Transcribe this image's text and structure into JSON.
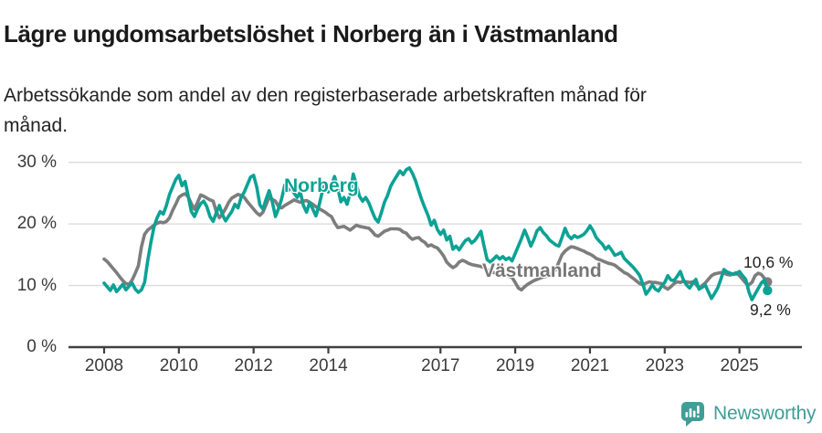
{
  "header": {
    "title": "Lägre ungdomsarbetslöshet i Norberg än i Västmanland",
    "subtitle_line1": "Arbetssökande som andel av den registerbaserade arbetskraften månad för",
    "subtitle_line2": "månad."
  },
  "footer": {
    "brand": "Newsworthy",
    "brand_color": "#3f9e97"
  },
  "colors": {
    "norberg_line": "#0ca295",
    "vastmanland_line": "#7d7d7d",
    "grid": "#dadada",
    "axis": "#404040",
    "tick_text": "#3a3a3a"
  },
  "chart_data": {
    "type": "line",
    "title": "Lägre ungdomsarbetslöshet i Norberg än i Västmanland",
    "x_unit": "month",
    "x_start": "2008-01",
    "x_end": "2025-10",
    "x_axis": {
      "tick_years": [
        2008,
        2010,
        2012,
        2014,
        2017,
        2019,
        2021,
        2023,
        2025
      ]
    },
    "y_axis": {
      "ticks": [
        {
          "label": "30 %",
          "value": 30
        },
        {
          "label": "20 %",
          "value": 20
        },
        {
          "label": "10 %",
          "value": 10
        },
        {
          "label": "0 %",
          "value": 0
        }
      ],
      "ylim": [
        0,
        30
      ],
      "grid": true
    },
    "legend_position": "inline-labels",
    "series": [
      {
        "name": "Norberg",
        "color": "#0ca295",
        "end_label": "9,2 %",
        "end_value": 9.2,
        "values": [
          10.4,
          9.8,
          9.2,
          10.1,
          9.0,
          9.6,
          10.2,
          9.3,
          9.9,
          10.4,
          9.4,
          8.9,
          9.3,
          10.5,
          14.0,
          17.0,
          19.5,
          21.0,
          22.0,
          21.6,
          23.0,
          24.8,
          26.0,
          27.2,
          27.9,
          26.2,
          26.9,
          24.5,
          22.0,
          21.2,
          22.4,
          23.3,
          23.7,
          22.8,
          21.2,
          20.4,
          21.8,
          23.0,
          21.5,
          20.5,
          21.3,
          22.0,
          23.2,
          22.6,
          24.3,
          25.2,
          26.4,
          27.6,
          27.9,
          26.0,
          23.1,
          22.4,
          24.0,
          25.4,
          23.6,
          21.2,
          22.5,
          24.1,
          26.3,
          25.4,
          25.9,
          25.0,
          24.3,
          25.2,
          23.0,
          21.9,
          23.5,
          22.4,
          21.3,
          23.0,
          25.1,
          26.7,
          25.2,
          26.3,
          27.7,
          25.8,
          23.6,
          24.3,
          23.2,
          25.0,
          28.1,
          26.4,
          24.5,
          23.7,
          24.3,
          23.4,
          22.1,
          20.9,
          20.3,
          21.8,
          23.5,
          24.6,
          26.1,
          27.0,
          27.8,
          28.6,
          28.0,
          28.8,
          29.1,
          28.2,
          27.0,
          25.4,
          23.9,
          22.6,
          21.4,
          19.8,
          20.6,
          19.1,
          18.3,
          19.0,
          17.4,
          18.0,
          15.9,
          16.4,
          15.8,
          16.6,
          17.3,
          17.6,
          16.9,
          17.3,
          18.0,
          18.8,
          16.4,
          14.2,
          13.8,
          14.3,
          14.8,
          14.3,
          14.7,
          14.2,
          14.5,
          14.0,
          15.2,
          16.4,
          17.6,
          19.0,
          17.8,
          16.4,
          17.5,
          18.9,
          19.4,
          18.6,
          18.1,
          17.4,
          17.0,
          16.6,
          16.4,
          17.8,
          19.3,
          18.1,
          17.6,
          18.1,
          17.8,
          18.0,
          18.3,
          18.9,
          19.7,
          18.9,
          17.8,
          17.2,
          16.7,
          15.9,
          16.4,
          15.7,
          14.9,
          15.1,
          15.4,
          14.4,
          13.9,
          13.4,
          12.9,
          12.3,
          11.6,
          10.2,
          8.6,
          9.3,
          10.1,
          9.4,
          9.1,
          9.9,
          10.5,
          11.6,
          10.9,
          10.8,
          11.5,
          12.3,
          10.9,
          10.1,
          9.6,
          10.4,
          11.0,
          9.4,
          9.7,
          10.1,
          9.0,
          7.9,
          8.7,
          9.6,
          11.0,
          12.6,
          12.2,
          12.0,
          11.8,
          11.9,
          12.3,
          11.6,
          11.0,
          9.0,
          7.7,
          8.6,
          9.5,
          10.4,
          10.9,
          9.2
        ]
      },
      {
        "name": "Västmanland",
        "color": "#7d7d7d",
        "end_label": "10,6 %",
        "end_value": 10.6,
        "values": [
          14.3,
          13.9,
          13.3,
          12.7,
          12.1,
          11.4,
          10.8,
          10.3,
          10.2,
          10.9,
          12.0,
          13.2,
          16.3,
          18.3,
          19.0,
          19.4,
          19.8,
          20.1,
          20.3,
          20.2,
          20.4,
          21.0,
          22.2,
          23.2,
          24.3,
          24.7,
          24.9,
          24.4,
          23.3,
          22.4,
          23.5,
          24.7,
          24.5,
          24.2,
          23.9,
          23.7,
          22.0,
          21.0,
          21.6,
          22.5,
          23.5,
          24.2,
          24.5,
          24.8,
          24.6,
          24.3,
          23.6,
          23.0,
          22.4,
          21.8,
          21.4,
          21.9,
          23.1,
          24.3,
          24.0,
          23.7,
          22.8,
          22.6,
          23.0,
          23.3,
          23.6,
          23.9,
          23.7,
          23.5,
          23.7,
          23.8,
          23.5,
          23.2,
          22.8,
          22.5,
          22.2,
          21.9,
          21.5,
          21.2,
          20.2,
          19.4,
          19.5,
          19.6,
          19.3,
          19.0,
          19.4,
          19.8,
          19.6,
          19.5,
          19.4,
          19.3,
          18.8,
          18.2,
          18.0,
          18.4,
          18.8,
          19.0,
          19.2,
          19.2,
          19.2,
          19.1,
          18.7,
          18.5,
          17.9,
          17.5,
          17.7,
          17.8,
          17.3,
          17.0,
          16.4,
          16.6,
          16.3,
          16.1,
          15.5,
          14.8,
          13.8,
          13.3,
          12.9,
          13.2,
          13.8,
          14.1,
          13.9,
          13.6,
          13.4,
          13.3,
          13.2,
          13.1,
          12.9,
          12.6,
          12.3,
          12.1,
          12.0,
          11.9,
          11.8,
          11.7,
          11.5,
          11.3,
          10.5,
          9.6,
          9.3,
          9.8,
          10.2,
          10.5,
          10.8,
          11.0,
          11.2,
          11.4,
          11.5,
          11.7,
          12.0,
          12.6,
          13.8,
          15.0,
          15.6,
          16.0,
          16.3,
          16.2,
          16.0,
          15.8,
          15.6,
          15.3,
          15.1,
          14.8,
          14.4,
          14.2,
          14.0,
          13.8,
          13.6,
          13.5,
          13.3,
          12.9,
          12.5,
          12.1,
          11.9,
          11.5,
          11.1,
          10.7,
          10.3,
          10.1,
          10.4,
          10.6,
          10.5,
          10.5,
          10.4,
          10.3,
          9.7,
          9.4,
          9.8,
          10.3,
          10.6,
          10.5,
          10.7,
          10.6,
          10.5,
          10.6,
          10.2,
          9.6,
          10.0,
          10.4,
          11.0,
          11.6,
          11.9,
          12.0,
          12.1,
          12.0,
          11.8,
          11.7,
          11.9,
          12.1,
          11.6,
          11.0,
          10.4,
          10.1,
          10.5,
          11.6,
          12.0,
          11.8,
          11.2,
          10.6
        ]
      }
    ]
  }
}
